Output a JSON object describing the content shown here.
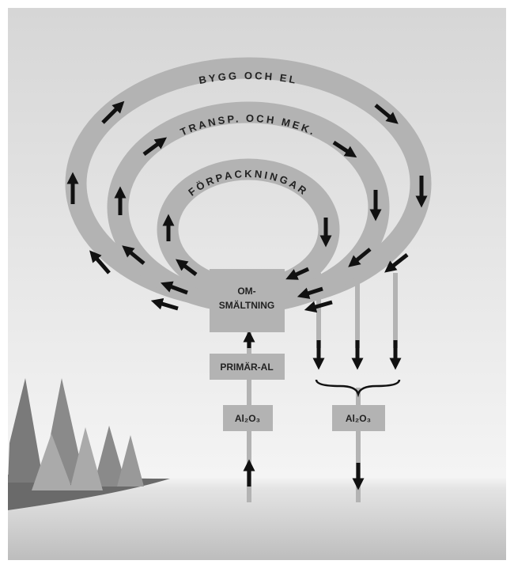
{
  "rings": [
    {
      "label": "BYGG OCH EL"
    },
    {
      "label": "TRANSP. OCH MEK."
    },
    {
      "label": "FÖRPACKNINGAR"
    }
  ],
  "boxes": {
    "remelting": {
      "lines": [
        "OM-",
        "SMÄLTNING"
      ]
    },
    "primary": {
      "label": "PRIMÄR-AL"
    },
    "oxide_left": {
      "label": "Al₂O₃"
    },
    "oxide_right": {
      "label": "Al₂O₃"
    }
  }
}
